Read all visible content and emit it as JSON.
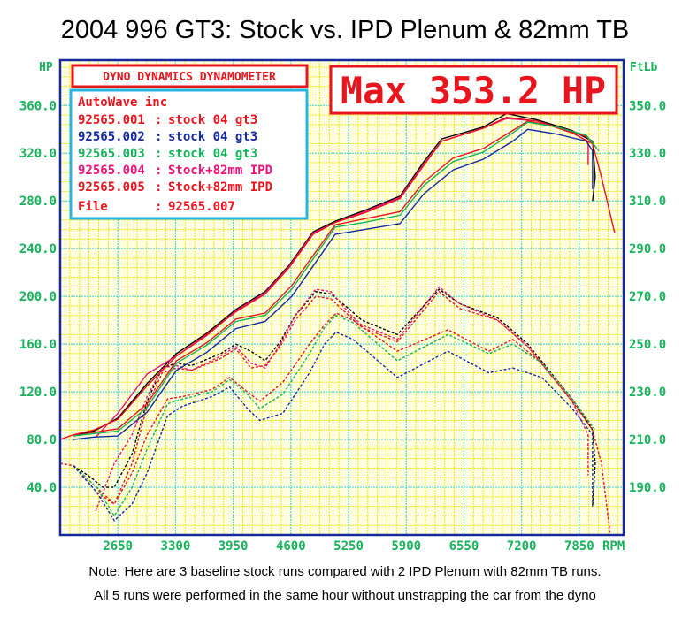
{
  "chart_data": {
    "type": "line",
    "title": "2004 996 GT3: Stock vs. IPD Plenum & 82mm TB",
    "xlabel": "RPM",
    "ylabel_left": "HP",
    "ylabel_right": "FtLb",
    "x_ticks": [
      2650,
      3300,
      3950,
      4600,
      5250,
      5900,
      6550,
      7200,
      7850
    ],
    "xlim": [
      2000,
      8350
    ],
    "y_left_ticks": [
      "40.0",
      "80.0",
      "120.0",
      "160.0",
      "200.0",
      "240.0",
      "280.0",
      "320.0",
      "360.0"
    ],
    "ylim_left": [
      0,
      398
    ],
    "y_right_ticks": [
      "190.0",
      "210.0",
      "230.0",
      "250.0",
      "270.0",
      "290.0",
      "310.0",
      "330.0",
      "350.0"
    ],
    "ylim_right": [
      170,
      369
    ],
    "grid": true,
    "header_box": "DYNO DYNAMICS DYNAMOMETER",
    "max_label": "Max 353.2 HP",
    "legend": {
      "company": "AutoWave inc",
      "entries": [
        {
          "id": "92565.001",
          "sep": ":",
          "desc": "stock 04 gt3",
          "color": "#e8141e"
        },
        {
          "id": "92565.002",
          "sep": ":",
          "desc": "stock 04 gt3",
          "color": "#1428a0"
        },
        {
          "id": "92565.003",
          "sep": ":",
          "desc": "stock 04 gt3",
          "color": "#14b45a"
        },
        {
          "id": "92565.004",
          "sep": ":",
          "desc": "Stock+82mm IPD",
          "color": "#e8147a"
        },
        {
          "id": "92565.005",
          "sep": ":",
          "desc": "Stock+82mm IPD",
          "color": "#e8141e"
        }
      ],
      "file_label": "File",
      "file_sep": ":",
      "file_value": "92565.007",
      "color": "#e8141e"
    },
    "series": [
      {
        "name": "92565.007",
        "color": "#000000",
        "hp": [
          [
            2150,
            83
          ],
          [
            2380,
            87
          ],
          [
            2650,
            98
          ],
          [
            2980,
            127
          ],
          [
            3310,
            152
          ],
          [
            3650,
            169
          ],
          [
            3980,
            189
          ],
          [
            4310,
            204
          ],
          [
            4580,
            226
          ],
          [
            4850,
            254
          ],
          [
            5100,
            263
          ],
          [
            5430,
            272
          ],
          [
            5830,
            284
          ],
          [
            6100,
            313
          ],
          [
            6300,
            332
          ],
          [
            6770,
            342
          ],
          [
            7030,
            353.2
          ],
          [
            7370,
            348
          ],
          [
            7770,
            339
          ],
          [
            8000,
            330
          ],
          [
            8030,
            300
          ],
          [
            8000,
            280
          ]
        ],
        "torque": [
          [
            2150,
            199
          ],
          [
            2350,
            194
          ],
          [
            2480,
            190
          ],
          [
            2610,
            190
          ],
          [
            2810,
            204
          ],
          [
            2980,
            226
          ],
          [
            3150,
            240
          ],
          [
            3310,
            242
          ],
          [
            3480,
            241
          ],
          [
            3810,
            246
          ],
          [
            3980,
            250
          ],
          [
            4150,
            247
          ],
          [
            4310,
            243
          ],
          [
            4480,
            251
          ],
          [
            4650,
            262
          ],
          [
            4880,
            272
          ],
          [
            5050,
            271
          ],
          [
            5280,
            264
          ],
          [
            5400,
            260
          ],
          [
            5800,
            254
          ],
          [
            6270,
            273
          ],
          [
            6500,
            267
          ],
          [
            6930,
            261
          ],
          [
            7270,
            250
          ],
          [
            7770,
            227
          ],
          [
            8000,
            214
          ],
          [
            8030,
            200
          ],
          [
            8000,
            182
          ]
        ]
      },
      {
        "name": "92565.004",
        "color": "#e8147a",
        "hp": [
          [
            2400,
            82
          ],
          [
            2650,
            102
          ],
          [
            2980,
            135
          ],
          [
            3310,
            150
          ],
          [
            3650,
            167
          ],
          [
            3980,
            188
          ],
          [
            4310,
            203
          ],
          [
            4580,
            225
          ],
          [
            4850,
            253
          ],
          [
            5100,
            262
          ],
          [
            5430,
            271
          ],
          [
            5830,
            283
          ],
          [
            6100,
            311
          ],
          [
            6300,
            330
          ],
          [
            6770,
            341
          ],
          [
            7030,
            349
          ],
          [
            7370,
            347
          ],
          [
            7770,
            338
          ],
          [
            7950,
            329
          ],
          [
            7950,
            310
          ]
        ],
        "torque": [
          [
            2400,
            180
          ],
          [
            2610,
            200
          ],
          [
            2810,
            212
          ],
          [
            2980,
            228
          ],
          [
            3150,
            240
          ],
          [
            3310,
            241
          ],
          [
            3480,
            239
          ],
          [
            3810,
            245
          ],
          [
            3980,
            249
          ],
          [
            4150,
            242
          ],
          [
            4310,
            240
          ],
          [
            4480,
            250
          ],
          [
            4650,
            262
          ],
          [
            4880,
            273
          ],
          [
            5050,
            272
          ],
          [
            5280,
            262
          ],
          [
            5400,
            258
          ],
          [
            5800,
            252
          ],
          [
            6270,
            274
          ],
          [
            6500,
            267
          ],
          [
            6930,
            260
          ],
          [
            7270,
            249
          ],
          [
            7770,
            226
          ],
          [
            7950,
            212
          ],
          [
            7950,
            195
          ]
        ]
      },
      {
        "name": "92565.005",
        "color": "#e8141e",
        "hp": [
          [
            2000,
            80
          ],
          [
            2150,
            84
          ],
          [
            2380,
            88
          ],
          [
            2650,
            97
          ],
          [
            2980,
            125
          ],
          [
            3310,
            150
          ],
          [
            3650,
            168
          ],
          [
            3980,
            187
          ],
          [
            4310,
            202
          ],
          [
            4580,
            224
          ],
          [
            4850,
            252
          ],
          [
            5100,
            262
          ],
          [
            5430,
            270
          ],
          [
            5830,
            282
          ],
          [
            6100,
            310
          ],
          [
            6300,
            330
          ],
          [
            6770,
            341
          ],
          [
            7030,
            350
          ],
          [
            7370,
            347
          ],
          [
            7770,
            337
          ],
          [
            8000,
            328
          ],
          [
            8100,
            300
          ],
          [
            8250,
            253
          ]
        ],
        "torque": [
          [
            2000,
            200
          ],
          [
            2150,
            199
          ],
          [
            2350,
            192
          ],
          [
            2610,
            183
          ],
          [
            2810,
            200
          ],
          [
            2980,
            224
          ],
          [
            3150,
            238
          ],
          [
            3310,
            240
          ],
          [
            3480,
            239
          ],
          [
            3810,
            244
          ],
          [
            3980,
            248
          ],
          [
            4150,
            240
          ],
          [
            4310,
            241
          ],
          [
            4480,
            249
          ],
          [
            4650,
            260
          ],
          [
            4880,
            270
          ],
          [
            5050,
            269
          ],
          [
            5280,
            261
          ],
          [
            5400,
            257
          ],
          [
            5800,
            251
          ],
          [
            6270,
            272
          ],
          [
            6500,
            265
          ],
          [
            6930,
            260
          ],
          [
            7270,
            249
          ],
          [
            7770,
            226
          ],
          [
            8000,
            214
          ],
          [
            8100,
            200
          ],
          [
            8200,
            170
          ]
        ]
      },
      {
        "name": "92565.001",
        "color": "#e8141e",
        "hp": [
          [
            2150,
            83
          ],
          [
            2380,
            86
          ],
          [
            2650,
            89
          ],
          [
            2980,
            110
          ],
          [
            3310,
            146
          ],
          [
            3650,
            161
          ],
          [
            3980,
            181
          ],
          [
            4310,
            186
          ],
          [
            4610,
            209
          ],
          [
            4800,
            229
          ],
          [
            5100,
            260
          ],
          [
            5430,
            265
          ],
          [
            5830,
            271
          ],
          [
            6100,
            296
          ],
          [
            6430,
            316
          ],
          [
            6770,
            324
          ],
          [
            7100,
            339
          ],
          [
            7270,
            347
          ],
          [
            7600,
            342
          ],
          [
            7930,
            334
          ],
          [
            8040,
            325
          ]
        ],
        "torque": [
          [
            2150,
            199
          ],
          [
            2410,
            188
          ],
          [
            2610,
            183
          ],
          [
            2810,
            196
          ],
          [
            2980,
            212
          ],
          [
            3210,
            227
          ],
          [
            3380,
            228
          ],
          [
            3710,
            231
          ],
          [
            3910,
            236
          ],
          [
            4110,
            230
          ],
          [
            4250,
            226
          ],
          [
            4510,
            234
          ],
          [
            4810,
            250
          ],
          [
            4980,
            258
          ],
          [
            5110,
            263
          ],
          [
            5300,
            260
          ],
          [
            5800,
            247
          ],
          [
            6370,
            256
          ],
          [
            6830,
            247
          ],
          [
            7100,
            252
          ],
          [
            7430,
            242
          ],
          [
            7770,
            227
          ],
          [
            8000,
            215
          ]
        ]
      },
      {
        "name": "92565.003",
        "color": "#14b45a",
        "hp": [
          [
            2150,
            83
          ],
          [
            2380,
            85
          ],
          [
            2650,
            87
          ],
          [
            2980,
            107
          ],
          [
            3310,
            144
          ],
          [
            3650,
            159
          ],
          [
            3980,
            179
          ],
          [
            4310,
            184
          ],
          [
            4610,
            206
          ],
          [
            4800,
            226
          ],
          [
            5100,
            258
          ],
          [
            5430,
            262
          ],
          [
            5830,
            268
          ],
          [
            6100,
            293
          ],
          [
            6430,
            313
          ],
          [
            6770,
            321
          ],
          [
            7100,
            337
          ],
          [
            7270,
            346
          ],
          [
            7600,
            342
          ],
          [
            7930,
            335
          ],
          [
            8070,
            322
          ]
        ],
        "torque": [
          [
            2150,
            199
          ],
          [
            2410,
            190
          ],
          [
            2610,
            178
          ],
          [
            2810,
            190
          ],
          [
            2980,
            206
          ],
          [
            3210,
            225
          ],
          [
            3380,
            227
          ],
          [
            3710,
            230
          ],
          [
            3910,
            235
          ],
          [
            4110,
            229
          ],
          [
            4250,
            223
          ],
          [
            4510,
            229
          ],
          [
            4810,
            246
          ],
          [
            4980,
            257
          ],
          [
            5110,
            262
          ],
          [
            5300,
            259
          ],
          [
            5800,
            243
          ],
          [
            6370,
            254
          ],
          [
            6830,
            246
          ],
          [
            7100,
            250
          ],
          [
            7430,
            242
          ],
          [
            7770,
            227
          ],
          [
            8030,
            214
          ]
        ]
      },
      {
        "name": "92565.002",
        "color": "#1428a0",
        "hp": [
          [
            2150,
            80
          ],
          [
            2380,
            82
          ],
          [
            2650,
            83
          ],
          [
            2980,
            103
          ],
          [
            3310,
            138
          ],
          [
            3650,
            153
          ],
          [
            3980,
            173
          ],
          [
            4310,
            179
          ],
          [
            4610,
            200
          ],
          [
            4800,
            220
          ],
          [
            5100,
            252
          ],
          [
            5430,
            256
          ],
          [
            5830,
            261
          ],
          [
            6100,
            286
          ],
          [
            6430,
            306
          ],
          [
            6770,
            315
          ],
          [
            7100,
            330
          ],
          [
            7270,
            340
          ],
          [
            7600,
            336
          ],
          [
            7930,
            330
          ],
          [
            8000,
            322
          ],
          [
            8000,
            290
          ]
        ],
        "torque": [
          [
            2150,
            199
          ],
          [
            2410,
            188
          ],
          [
            2610,
            176
          ],
          [
            2810,
            183
          ],
          [
            2980,
            196
          ],
          [
            3210,
            220
          ],
          [
            3380,
            224
          ],
          [
            3710,
            228
          ],
          [
            3910,
            232
          ],
          [
            4110,
            223
          ],
          [
            4250,
            218
          ],
          [
            4510,
            221
          ],
          [
            4810,
            238
          ],
          [
            4980,
            250
          ],
          [
            5110,
            255
          ],
          [
            5300,
            252
          ],
          [
            5800,
            236
          ],
          [
            6370,
            247
          ],
          [
            6830,
            238
          ],
          [
            7100,
            240
          ],
          [
            7430,
            236
          ],
          [
            7770,
            223
          ],
          [
            8000,
            212
          ],
          [
            8000,
            182
          ]
        ]
      }
    ]
  },
  "notes": [
    "Note: Here are 3 baseline stock runs compared with 2 IPD Plenum with 82mm TB runs.",
    "All 5 runs were performed in the same hour without unstrapping the car from the dyno"
  ],
  "colors": {
    "axis_text": "#14b45a",
    "frame": "#1428a0",
    "minor_grid": "#f0e614",
    "major_grid": "#3cd2e6",
    "plot_bg": "#ffffcc",
    "legend_border": "#28b4e6",
    "accent": "#e8141e"
  }
}
